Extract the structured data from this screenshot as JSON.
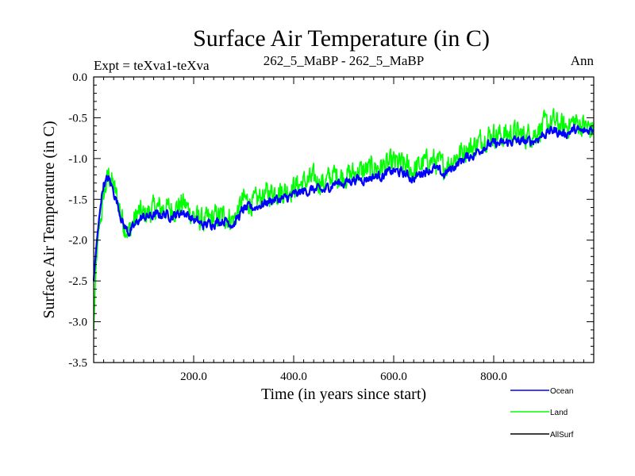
{
  "chart_data": {
    "type": "line",
    "title": "Surface Air Temperature (in C)",
    "subtitle_left": "Expt = teXva1-teXva",
    "subtitle_center": "262_5_MaBP - 262_5_MaBP",
    "subtitle_right": "Ann",
    "xlabel": "Time (in years since start)",
    "ylabel": "Surface Air Temperature (in C)",
    "xlim": [
      0,
      1000
    ],
    "ylim": [
      -3.5,
      0.0
    ],
    "xticks": [
      200,
      400,
      600,
      800
    ],
    "xtick_labels": [
      "200.0",
      "400.0",
      "600.0",
      "800.0"
    ],
    "yticks": [
      0.0,
      -0.5,
      -1.0,
      -1.5,
      -2.0,
      -2.5,
      -3.0,
      -3.5
    ],
    "ytick_labels": [
      "0.0",
      "-0.5",
      "-1.0",
      "-1.5",
      "-2.0",
      "-2.5",
      "-3.0",
      "-3.5"
    ],
    "legend_position": "bottom-right, outside plot",
    "series": [
      {
        "name": "Land",
        "color": "#00ff00",
        "x": [
          0,
          5,
          10,
          15,
          20,
          30,
          40,
          50,
          60,
          70,
          80,
          90,
          100,
          120,
          140,
          160,
          180,
          200,
          220,
          240,
          260,
          280,
          300,
          320,
          340,
          360,
          380,
          400,
          420,
          440,
          460,
          480,
          500,
          520,
          540,
          560,
          580,
          600,
          620,
          640,
          660,
          680,
          700,
          720,
          740,
          760,
          780,
          800,
          820,
          840,
          860,
          880,
          900,
          920,
          940,
          960,
          980,
          1000
        ],
        "values": [
          -3.1,
          -2.3,
          -1.9,
          -1.7,
          -1.45,
          -1.2,
          -1.35,
          -1.55,
          -1.8,
          -1.9,
          -1.78,
          -1.65,
          -1.7,
          -1.62,
          -1.6,
          -1.62,
          -1.55,
          -1.7,
          -1.78,
          -1.72,
          -1.7,
          -1.75,
          -1.5,
          -1.55,
          -1.45,
          -1.4,
          -1.4,
          -1.35,
          -1.3,
          -1.25,
          -1.3,
          -1.2,
          -1.22,
          -1.18,
          -1.15,
          -1.12,
          -1.1,
          -1.05,
          -1.08,
          -1.15,
          -1.05,
          -1.02,
          -1.1,
          -1.0,
          -0.9,
          -0.85,
          -0.75,
          -0.7,
          -0.72,
          -0.68,
          -0.72,
          -0.7,
          -0.6,
          -0.55,
          -0.62,
          -0.55,
          -0.6,
          -0.65
        ]
      },
      {
        "name": "Ocean",
        "color": "#0000ff",
        "x": [
          0,
          5,
          10,
          15,
          20,
          30,
          40,
          50,
          60,
          70,
          80,
          90,
          100,
          120,
          140,
          160,
          180,
          200,
          220,
          240,
          260,
          280,
          300,
          320,
          340,
          360,
          380,
          400,
          420,
          440,
          460,
          480,
          500,
          520,
          540,
          560,
          580,
          600,
          620,
          640,
          660,
          680,
          700,
          720,
          740,
          760,
          780,
          800,
          820,
          840,
          860,
          880,
          900,
          920,
          940,
          960,
          980,
          1000
        ],
        "values": [
          -2.5,
          -2.1,
          -1.8,
          -1.5,
          -1.3,
          -1.25,
          -1.4,
          -1.6,
          -1.82,
          -1.9,
          -1.85,
          -1.75,
          -1.72,
          -1.7,
          -1.68,
          -1.7,
          -1.65,
          -1.75,
          -1.82,
          -1.78,
          -1.75,
          -1.8,
          -1.62,
          -1.6,
          -1.55,
          -1.5,
          -1.5,
          -1.45,
          -1.4,
          -1.38,
          -1.4,
          -1.3,
          -1.3,
          -1.25,
          -1.25,
          -1.22,
          -1.2,
          -1.15,
          -1.18,
          -1.25,
          -1.15,
          -1.12,
          -1.2,
          -1.1,
          -1.0,
          -0.95,
          -0.85,
          -0.82,
          -0.82,
          -0.78,
          -0.8,
          -0.78,
          -0.7,
          -0.65,
          -0.7,
          -0.65,
          -0.68,
          -0.62
        ]
      },
      {
        "name": "AllSurf",
        "color": "#000000",
        "x": [],
        "values": []
      }
    ]
  }
}
